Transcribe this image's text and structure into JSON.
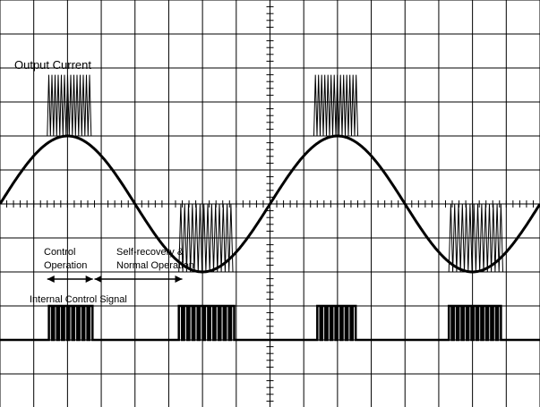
{
  "chart_data": {
    "type": "line",
    "title": "",
    "xlabel": "",
    "ylabel": "",
    "grid": true,
    "legend": "none",
    "x_divisions": 16,
    "y_divisions": 12,
    "series": [
      {
        "name": "Output Current",
        "kind": "sine-with-chopping",
        "cycles_shown": 2,
        "sine_start_phase_deg": 0,
        "amplitude_divisions": 2,
        "center_division": 6,
        "chop_bursts": [
          {
            "x_start": 1.4,
            "x_end": 2.7,
            "level_high": 4.0,
            "level_low": 2.2,
            "pulses": 14
          },
          {
            "x_start": 5.3,
            "x_end": 6.9,
            "level_high": 8.0,
            "level_low": 6.0,
            "pulses": 14
          },
          {
            "x_start": 9.3,
            "x_end": 10.6,
            "level_high": 4.0,
            "level_low": 2.2,
            "pulses": 14
          },
          {
            "x_start": 13.3,
            "x_end": 14.9,
            "level_high": 8.0,
            "level_low": 6.0,
            "pulses": 14
          }
        ]
      },
      {
        "name": "Internal Control Signal",
        "kind": "pulse-bursts",
        "baseline_division": 10,
        "high_division": 9,
        "bursts": [
          {
            "x_start": 1.45,
            "x_end": 2.8,
            "pulses": 9
          },
          {
            "x_start": 5.3,
            "x_end": 7.0,
            "pulses": 11
          },
          {
            "x_start": 9.4,
            "x_end": 10.6,
            "pulses": 8
          },
          {
            "x_start": 13.3,
            "x_end": 14.9,
            "pulses": 11
          }
        ]
      }
    ],
    "annotations": {
      "output_current_label": "Output Current",
      "control_label_line1": "Control",
      "control_label_line2": "Operation",
      "recovery_label_line1": "Self-recovery &",
      "recovery_label_line2": "Normal Operation",
      "internal_signal_label": "Internal Control Signal"
    },
    "colors": {
      "trace": "#000000",
      "grid": "#000000",
      "background": "#ffffff"
    }
  }
}
